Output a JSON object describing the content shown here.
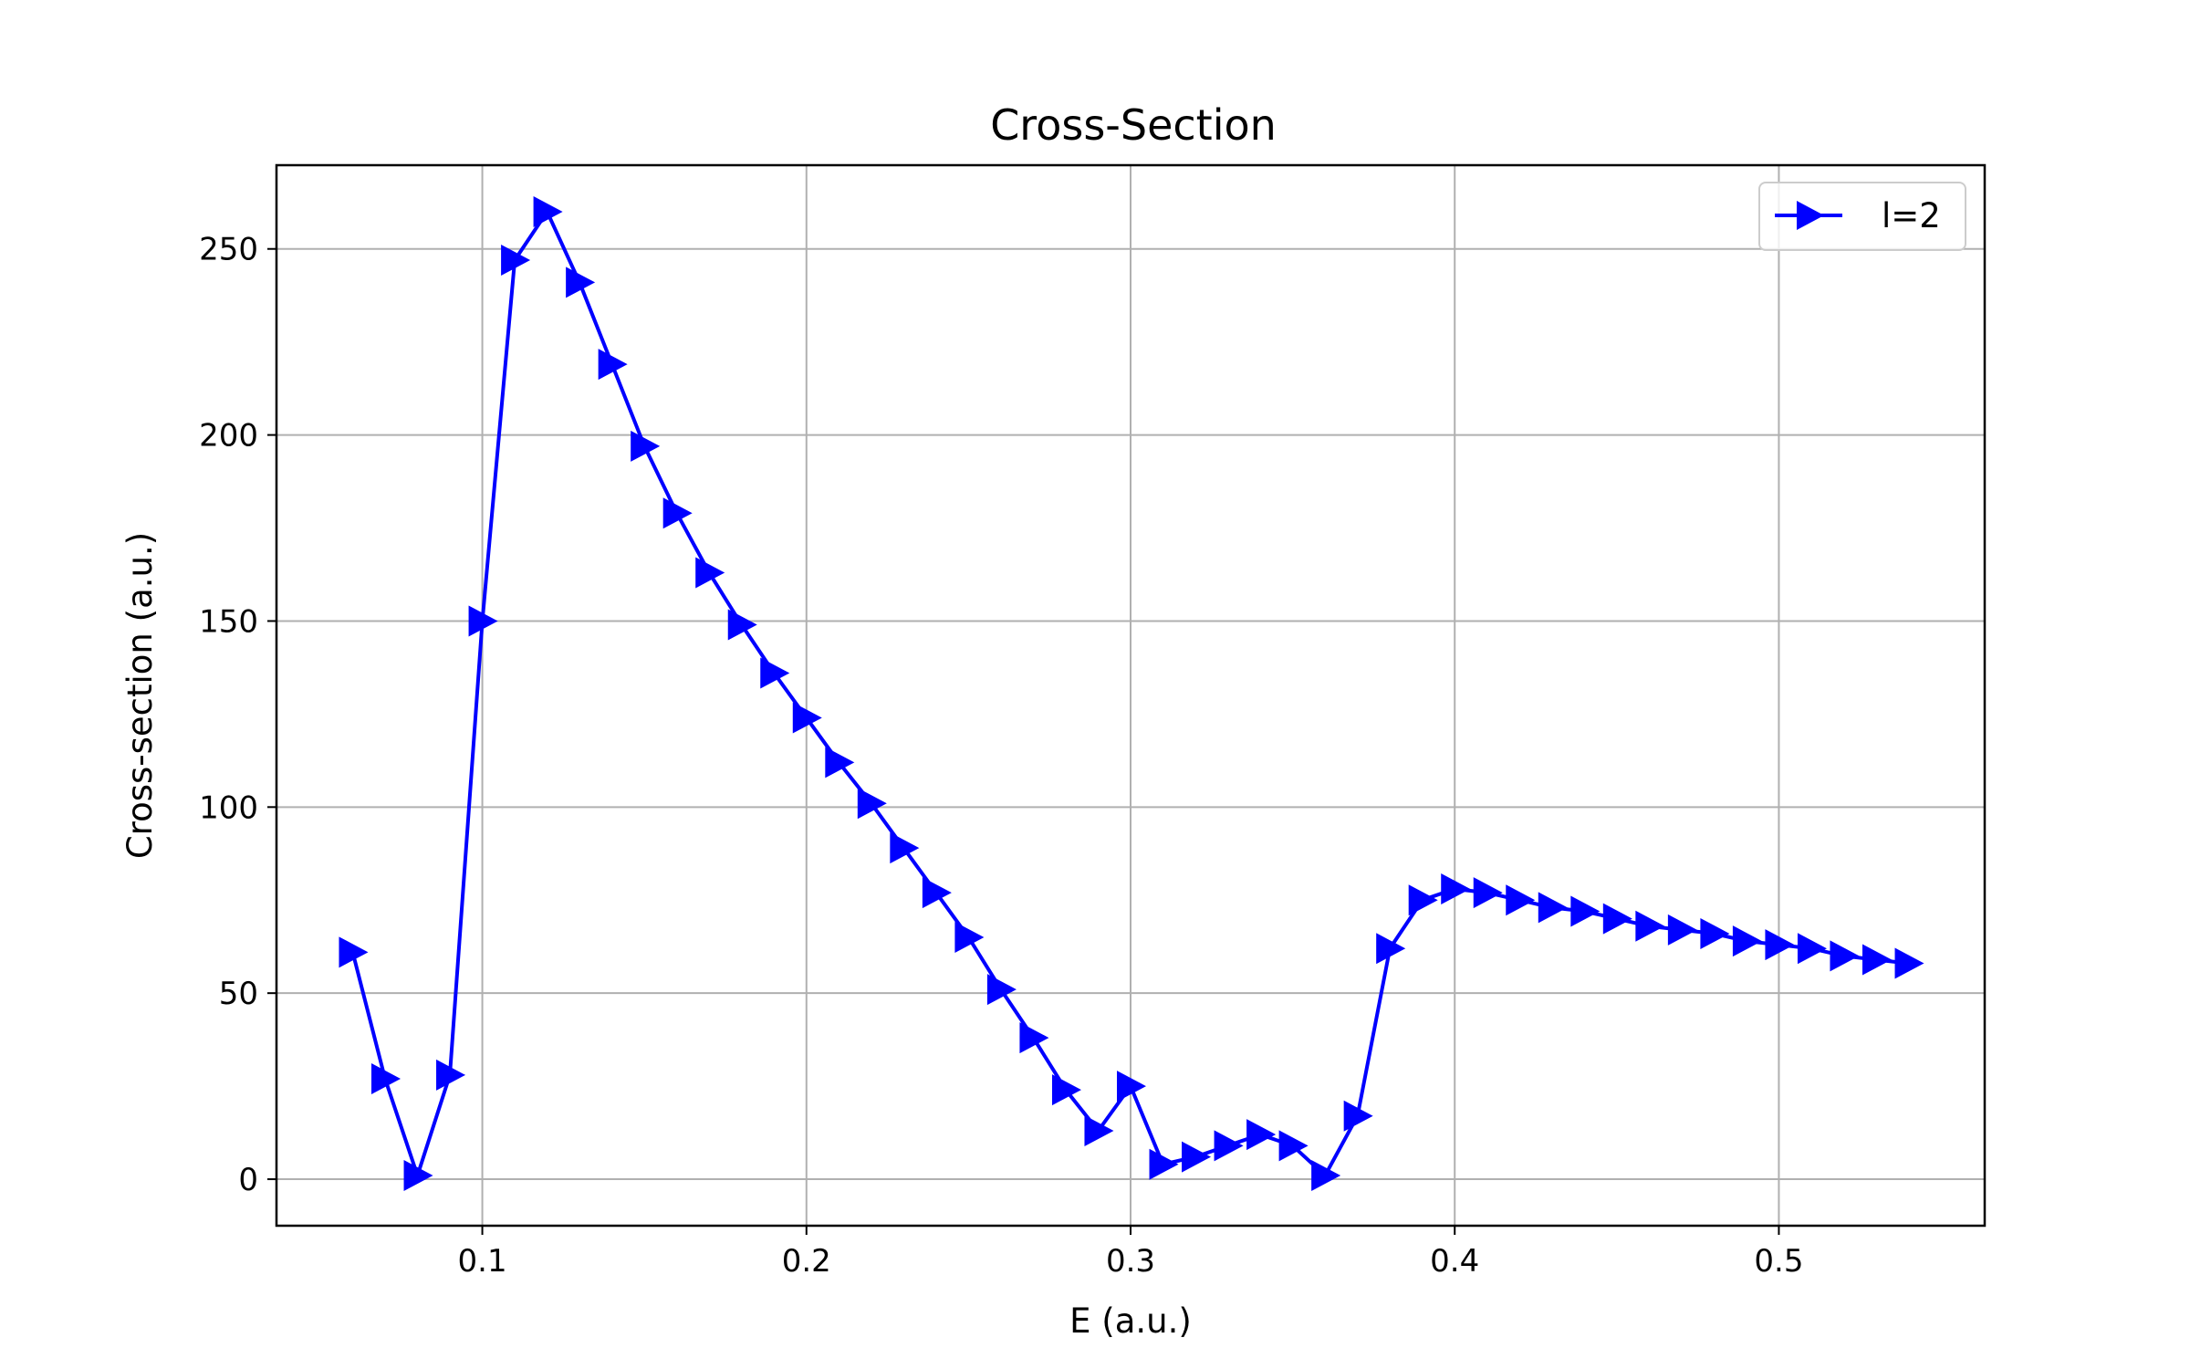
{
  "chart_data": {
    "type": "line",
    "title": "Cross-Section",
    "xlabel": "E (a.u.)",
    "ylabel": "Cross-section (a.u.)",
    "xlim": [
      0.0365,
      0.5635
    ],
    "ylim": [
      -12.5,
      272.5
    ],
    "xticks": [
      0.1,
      0.2,
      0.3,
      0.4,
      0.5
    ],
    "xtick_labels": [
      "0.1",
      "0.2",
      "0.3",
      "0.4",
      "0.5"
    ],
    "yticks": [
      0,
      50,
      100,
      150,
      200,
      250
    ],
    "ytick_labels": [
      "0",
      "50",
      "100",
      "150",
      "200",
      "250"
    ],
    "grid": true,
    "legend_position": "top-right",
    "series": [
      {
        "name": "l=2",
        "color": "#0000ff",
        "marker": "triangle-right",
        "x": [
          0.06,
          0.07,
          0.08,
          0.09,
          0.1,
          0.11,
          0.12,
          0.13,
          0.14,
          0.15,
          0.16,
          0.17,
          0.18,
          0.19,
          0.2,
          0.21,
          0.22,
          0.23,
          0.24,
          0.25,
          0.26,
          0.27,
          0.28,
          0.29,
          0.3,
          0.31,
          0.32,
          0.33,
          0.34,
          0.35,
          0.36,
          0.37,
          0.38,
          0.39,
          0.4,
          0.41,
          0.42,
          0.43,
          0.44,
          0.45,
          0.46,
          0.47,
          0.48,
          0.49,
          0.5,
          0.51,
          0.52,
          0.53,
          0.54
        ],
        "y": [
          61,
          27,
          1,
          28,
          150,
          247,
          260,
          241,
          219,
          197,
          179,
          163,
          149,
          136,
          124,
          112,
          101,
          89,
          77,
          65,
          51,
          38,
          24,
          13,
          25,
          4,
          6,
          9,
          12,
          9,
          1,
          17,
          62,
          75,
          78,
          77,
          75,
          73,
          72,
          70,
          68,
          67,
          66,
          64,
          63,
          62,
          60,
          59,
          58
        ]
      }
    ]
  }
}
